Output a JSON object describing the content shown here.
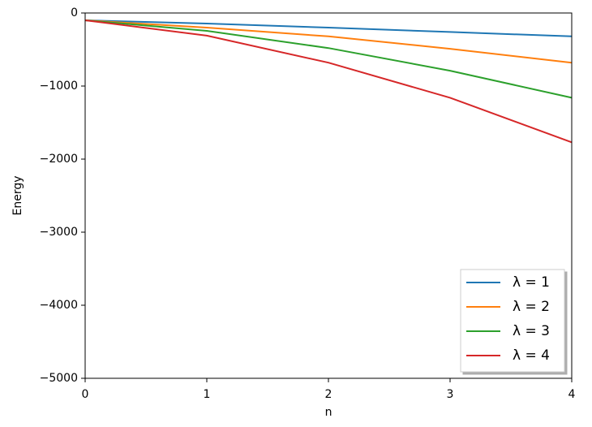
{
  "chart_data": {
    "type": "line",
    "x": [
      0,
      1,
      2,
      3,
      4
    ],
    "x_label": "n",
    "y_label": "Energy",
    "series": [
      {
        "name": "λ = 1",
        "color": "#1f77b4",
        "values": [
          -100,
          -145,
          -200,
          -260,
          -320
        ]
      },
      {
        "name": "λ = 2",
        "color": "#ff7f0e",
        "values": [
          -100,
          -200,
          -320,
          -490,
          -680
        ]
      },
      {
        "name": "λ = 3",
        "color": "#2ca02c",
        "values": [
          -100,
          -245,
          -480,
          -790,
          -1160
        ]
      },
      {
        "name": "λ = 4",
        "color": "#d62728",
        "values": [
          -100,
          -310,
          -680,
          -1160,
          -1770
        ]
      }
    ],
    "xlim": [
      0,
      4
    ],
    "xticks": [
      0,
      1,
      2,
      3,
      4
    ],
    "ylim": [
      -5000,
      0
    ],
    "yticks": [
      {
        "value": -5000,
        "label": "−5000"
      },
      {
        "value": -4000,
        "label": "−4000"
      },
      {
        "value": -3000,
        "label": "−3000"
      },
      {
        "value": -2000,
        "label": "−2000"
      },
      {
        "value": -1000,
        "label": "−1000"
      },
      0
    ],
    "legend": "lower right",
    "grid": false
  }
}
